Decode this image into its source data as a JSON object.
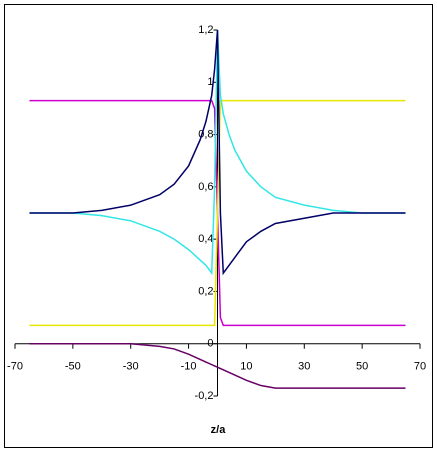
{
  "chart_data": {
    "type": "line",
    "x_label": "z/a",
    "x": [
      -65,
      -50,
      -40,
      -30,
      -20,
      -15,
      -10,
      -6,
      -4,
      -2,
      -1,
      0,
      1,
      2,
      4,
      6,
      10,
      15,
      20,
      30,
      40,
      50,
      65
    ],
    "series": [
      {
        "color": "#cc00cc",
        "values": [
          0.93,
          0.93,
          0.93,
          0.93,
          0.93,
          0.93,
          0.93,
          0.93,
          0.93,
          0.93,
          0.9,
          0.5,
          0.1,
          0.07,
          0.07,
          0.07,
          0.07,
          0.07,
          0.07,
          0.07,
          0.07,
          0.07,
          0.07
        ]
      },
      {
        "color": "#e6e600",
        "values": [
          0.07,
          0.07,
          0.07,
          0.07,
          0.07,
          0.07,
          0.07,
          0.07,
          0.07,
          0.07,
          0.07,
          0.5,
          0.93,
          0.93,
          0.93,
          0.93,
          0.93,
          0.93,
          0.93,
          0.93,
          0.93,
          0.93,
          0.93
        ]
      },
      {
        "color": "#33e6e6",
        "values": [
          0.5,
          0.5,
          0.49,
          0.47,
          0.43,
          0.4,
          0.36,
          0.32,
          0.3,
          0.27,
          0.6,
          1.2,
          0.95,
          0.88,
          0.8,
          0.74,
          0.66,
          0.6,
          0.56,
          0.53,
          0.51,
          0.5,
          0.5
        ]
      },
      {
        "color": "#000066",
        "values": [
          0.5,
          0.5,
          0.51,
          0.53,
          0.57,
          0.61,
          0.68,
          0.78,
          0.85,
          0.95,
          1.05,
          1.2,
          0.5,
          0.27,
          0.3,
          0.33,
          0.39,
          0.43,
          0.46,
          0.48,
          0.5,
          0.5,
          0.5
        ]
      },
      {
        "color": "#660066",
        "values": [
          0,
          0,
          0,
          0,
          -0.01,
          -0.02,
          -0.04,
          -0.06,
          -0.07,
          -0.08,
          -0.085,
          -0.09,
          -0.095,
          -0.1,
          -0.11,
          -0.12,
          -0.14,
          -0.16,
          -0.17,
          -0.17,
          -0.17,
          -0.17,
          -0.17
        ]
      }
    ],
    "xlim": [
      -70,
      70
    ],
    "xticks": [
      -70,
      -50,
      -30,
      -10,
      10,
      30,
      50,
      70
    ],
    "ylim": [
      -0.2,
      1.2
    ],
    "yticks": [
      {
        "value": -0.2,
        "label": "-0,2"
      },
      0,
      {
        "value": 0.2,
        "label": "0,2"
      },
      {
        "value": 0.4,
        "label": "0,4"
      },
      {
        "value": 0.6,
        "label": "0,6"
      },
      {
        "value": 0.8,
        "label": "0,8"
      },
      1,
      {
        "value": 1.2,
        "label": "1,2"
      }
    ]
  }
}
